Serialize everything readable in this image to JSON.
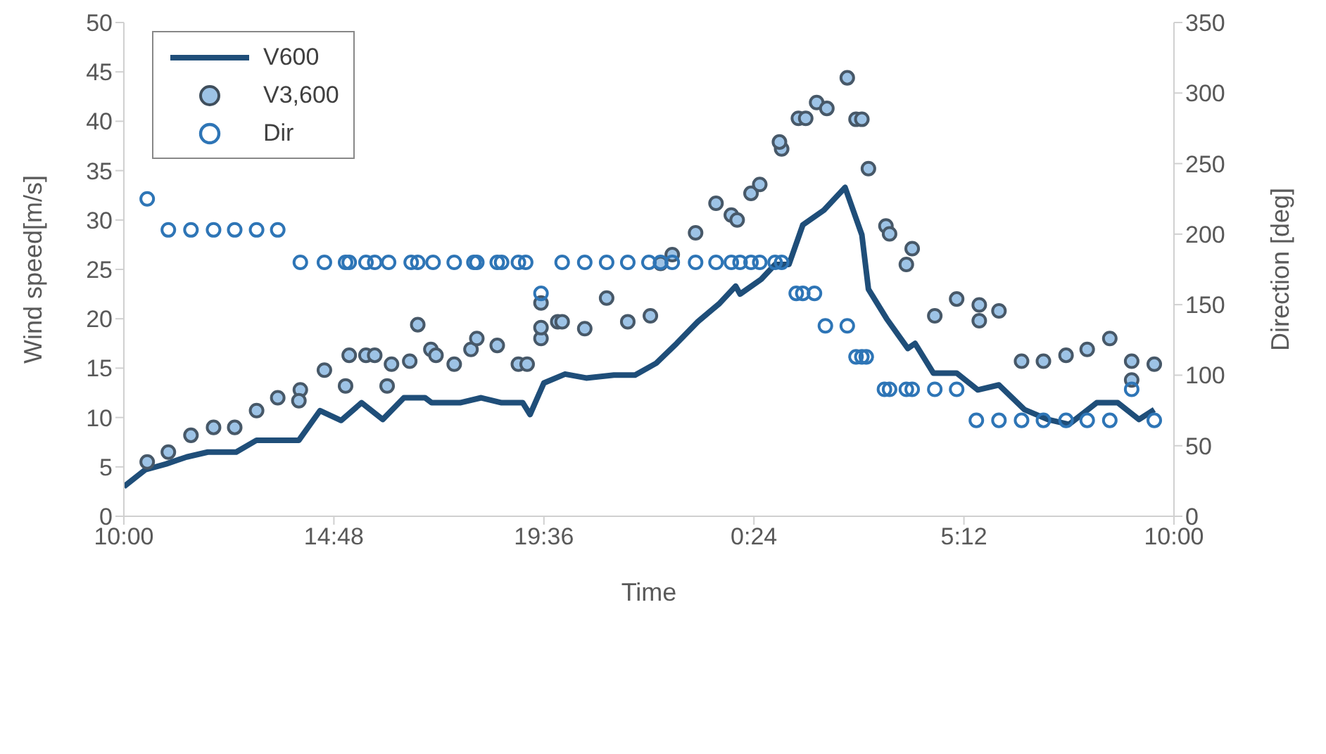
{
  "chart_data": {
    "type": "line",
    "xlabel": "Time",
    "ylabel": "Wind speed[m/s]",
    "y2label": "Direction [deg]",
    "xlim": [
      "2000-01-01T10:00",
      "2000-01-02T10:00"
    ],
    "xticks": [
      {
        "value": "2000-01-01T10:00",
        "label": "10:00"
      },
      {
        "value": "2000-01-01T14:48",
        "label": "14:48"
      },
      {
        "value": "2000-01-01T19:36",
        "label": "19:36"
      },
      {
        "value": "2000-01-02T00:24",
        "label": "0:24"
      },
      {
        "value": "2000-01-02T05:12",
        "label": "5:12"
      },
      {
        "value": "2000-01-02T10:00",
        "label": "10:00"
      }
    ],
    "ylim": [
      0,
      50
    ],
    "yticks": [
      0,
      5,
      10,
      15,
      20,
      25,
      30,
      35,
      40,
      45,
      50
    ],
    "y2lim": [
      0,
      350
    ],
    "y2ticks": [
      0,
      50,
      100,
      150,
      200,
      250,
      300,
      350
    ],
    "grid": false,
    "legend": "top left",
    "series": [
      {
        "name": "V600",
        "color": "#1f4e79",
        "marker": "none",
        "x": [
          "2000-01-01T10:00",
          "2000-01-01T10:29",
          "2000-01-01T10:58",
          "2000-01-01T11:26",
          "2000-01-01T11:55",
          "2000-01-01T12:34",
          "2000-01-01T13:02",
          "2000-01-01T14:00",
          "2000-01-01T14:29",
          "2000-01-01T14:58",
          "2000-01-01T15:26",
          "2000-01-01T15:55",
          "2000-01-01T16:24",
          "2000-01-01T16:53",
          "2000-01-01T17:02",
          "2000-01-01T17:41",
          "2000-01-01T18:10",
          "2000-01-01T18:38",
          "2000-01-01T19:07",
          "2000-01-01T19:17",
          "2000-01-01T19:36",
          "2000-01-01T20:05",
          "2000-01-01T20:34",
          "2000-01-01T21:12",
          "2000-01-01T21:41",
          "2000-01-01T22:10",
          "2000-01-01T22:38",
          "2000-01-01T23:07",
          "2000-01-01T23:36",
          "2000-01-01T23:59",
          "2000-01-02T00:05",
          "2000-01-02T00:34",
          "2000-01-02T00:53",
          "2000-01-02T01:12",
          "2000-01-02T01:31",
          "2000-01-02T02:00",
          "2000-01-02T02:29",
          "2000-01-02T02:52",
          "2000-01-02T03:01",
          "2000-01-02T03:26",
          "2000-01-02T03:55",
          "2000-01-02T04:05",
          "2000-01-02T04:30",
          "2000-01-02T05:02",
          "2000-01-02T05:31",
          "2000-01-02T06:00",
          "2000-01-02T06:35",
          "2000-01-02T07:07",
          "2000-01-02T07:36",
          "2000-01-02T08:14",
          "2000-01-02T08:43",
          "2000-01-02T09:12",
          "2000-01-02T09:33"
        ],
        "values": [
          3,
          4.7,
          5.3,
          6,
          6.5,
          6.5,
          7.7,
          7.7,
          10.7,
          9.7,
          11.5,
          9.8,
          12,
          12,
          11.5,
          11.5,
          12,
          11.5,
          11.5,
          10.3,
          13.5,
          14.4,
          14,
          14.3,
          14.3,
          15.5,
          17.5,
          19.7,
          21.5,
          23.3,
          22.5,
          24,
          25.5,
          25.5,
          29.5,
          31,
          33.3,
          28.5,
          23,
          20,
          17,
          17.5,
          14.5,
          14.5,
          12.8,
          13.3,
          10.8,
          9.8,
          9.3,
          11.5,
          11.5,
          9.8,
          10.8
        ]
      },
      {
        "name": "V3,600",
        "type": "scatter",
        "color": "#9dc3e6",
        "marker": "circle",
        "x": [
          "2000-01-01T10:32",
          "2000-01-01T11:01",
          "2000-01-01T11:32",
          "2000-01-01T12:03",
          "2000-01-01T12:32",
          "2000-01-01T13:02",
          "2000-01-01T13:31",
          "2000-01-01T14:02",
          "2000-01-01T14:00",
          "2000-01-01T14:35",
          "2000-01-01T15:04",
          "2000-01-01T15:09",
          "2000-01-01T15:32",
          "2000-01-01T15:44",
          "2000-01-01T16:01",
          "2000-01-01T16:07",
          "2000-01-01T16:32",
          "2000-01-01T16:43",
          "2000-01-01T17:01",
          "2000-01-01T17:08",
          "2000-01-01T17:33",
          "2000-01-01T17:56",
          "2000-01-01T18:04",
          "2000-01-01T18:32",
          "2000-01-01T19:01",
          "2000-01-01T19:13",
          "2000-01-01T19:32",
          "2000-01-01T19:32",
          "2000-01-01T19:32",
          "2000-01-01T19:55",
          "2000-01-01T20:01",
          "2000-01-01T20:32",
          "2000-01-01T21:02",
          "2000-01-01T21:31",
          "2000-01-01T22:02",
          "2000-01-01T22:16",
          "2000-01-01T22:32",
          "2000-01-01T23:04",
          "2000-01-01T23:32",
          "2000-01-01T23:53",
          "2000-01-02T00:01",
          "2000-01-02T00:20",
          "2000-01-02T00:32",
          "2000-01-02T01:02",
          "2000-01-02T00:59",
          "2000-01-02T01:25",
          "2000-01-02T01:35",
          "2000-01-02T01:50",
          "2000-01-02T02:04",
          "2000-01-02T02:32",
          "2000-01-02T02:44",
          "2000-01-02T02:52",
          "2000-01-02T03:01",
          "2000-01-02T03:25",
          "2000-01-02T03:30",
          "2000-01-02T04:01",
          "2000-01-02T03:53",
          "2000-01-02T04:32",
          "2000-01-02T05:02",
          "2000-01-02T05:33",
          "2000-01-02T05:33",
          "2000-01-02T06:00",
          "2000-01-02T06:31",
          "2000-01-02T07:01",
          "2000-01-02T07:32",
          "2000-01-02T08:01",
          "2000-01-02T08:32",
          "2000-01-02T09:02",
          "2000-01-02T09:02",
          "2000-01-02T09:33"
        ],
        "values": [
          5.5,
          6.5,
          8.2,
          9,
          9,
          10.7,
          12,
          12.8,
          11.7,
          14.8,
          13.2,
          16.3,
          16.3,
          16.3,
          13.2,
          15.4,
          15.7,
          19.4,
          16.9,
          16.3,
          15.4,
          16.9,
          18,
          17.3,
          15.4,
          15.4,
          18,
          19.1,
          21.6,
          19.7,
          19.7,
          19,
          22.1,
          19.7,
          20.3,
          25.6,
          26.5,
          28.7,
          31.7,
          30.5,
          30,
          32.7,
          33.6,
          37.2,
          37.9,
          40.3,
          40.3,
          41.9,
          41.3,
          44.4,
          40.2,
          40.2,
          35.2,
          29.4,
          28.6,
          27.1,
          25.5,
          20.3,
          22,
          21.4,
          19.8,
          20.8,
          15.7,
          15.7,
          16.3,
          16.9,
          18,
          15.7,
          13.8,
          15.4
        ]
      },
      {
        "name": "Dir",
        "type": "scatter",
        "axis": "y2",
        "color": "#2e75b6",
        "marker": "circle",
        "x": [
          "2000-01-01T10:32",
          "2000-01-01T11:01",
          "2000-01-01T11:32",
          "2000-01-01T12:03",
          "2000-01-01T12:32",
          "2000-01-01T13:02",
          "2000-01-01T13:31",
          "2000-01-01T14:02",
          "2000-01-01T14:35",
          "2000-01-01T15:04",
          "2000-01-01T15:09",
          "2000-01-01T15:32",
          "2000-01-01T15:44",
          "2000-01-01T16:03",
          "2000-01-01T16:34",
          "2000-01-01T16:43",
          "2000-01-01T17:04",
          "2000-01-01T17:33",
          "2000-01-01T18:00",
          "2000-01-01T18:04",
          "2000-01-01T18:32",
          "2000-01-01T18:38",
          "2000-01-01T19:01",
          "2000-01-01T19:11",
          "2000-01-01T19:32",
          "2000-01-01T20:01",
          "2000-01-01T20:32",
          "2000-01-01T21:02",
          "2000-01-01T21:31",
          "2000-01-01T22:00",
          "2000-01-01T22:16",
          "2000-01-01T22:32",
          "2000-01-01T23:04",
          "2000-01-01T23:32",
          "2000-01-01T23:53",
          "2000-01-02T00:05",
          "2000-01-02T00:20",
          "2000-01-02T00:32",
          "2000-01-02T00:53",
          "2000-01-02T01:02",
          "2000-01-02T01:22",
          "2000-01-02T01:31",
          "2000-01-02T01:47",
          "2000-01-02T02:02",
          "2000-01-02T02:32",
          "2000-01-02T02:44",
          "2000-01-02T02:52",
          "2000-01-02T02:58",
          "2000-01-02T03:23",
          "2000-01-02T03:30",
          "2000-01-02T03:53",
          "2000-01-02T04:01",
          "2000-01-02T04:32",
          "2000-01-02T05:02",
          "2000-01-02T05:29",
          "2000-01-02T06:00",
          "2000-01-02T06:31",
          "2000-01-02T07:01",
          "2000-01-02T07:32",
          "2000-01-02T08:01",
          "2000-01-02T08:32",
          "2000-01-02T09:02",
          "2000-01-02T09:33"
        ],
        "values": [
          225,
          203,
          203,
          203,
          203,
          203,
          203,
          180,
          180,
          180,
          180,
          180,
          180,
          180,
          180,
          180,
          180,
          180,
          180,
          180,
          180,
          180,
          180,
          180,
          158,
          180,
          180,
          180,
          180,
          180,
          180,
          180,
          180,
          180,
          180,
          180,
          180,
          180,
          180,
          180,
          158,
          158,
          158,
          135,
          135,
          113,
          113,
          113,
          90,
          90,
          90,
          90,
          90,
          90,
          68,
          68,
          68,
          68,
          68,
          68,
          68,
          90,
          68
        ]
      }
    ]
  }
}
